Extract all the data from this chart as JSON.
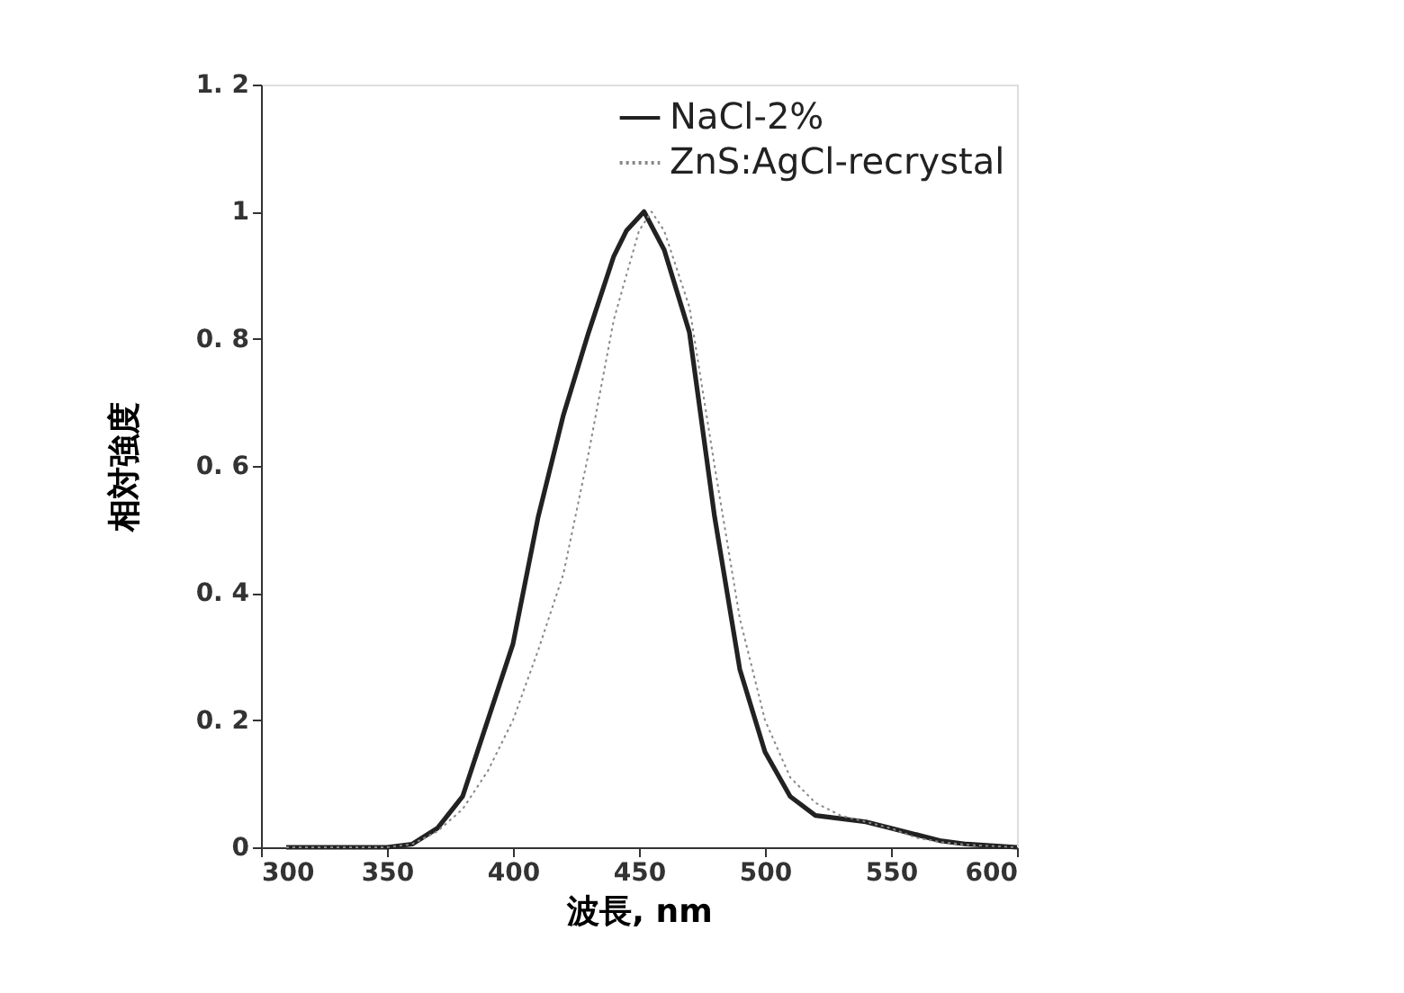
{
  "chart_data": {
    "type": "line",
    "xlabel": "波長, nm",
    "ylabel": "相対強度",
    "xlim": [
      300,
      600
    ],
    "xticks": [
      300,
      350,
      400,
      450,
      500,
      550,
      600
    ],
    "ylim": [
      0,
      1.2
    ],
    "yticks": [
      0,
      {
        "value": 0.2,
        "label": "0. 2"
      },
      {
        "value": 0.4,
        "label": "0. 4"
      },
      {
        "value": 0.6,
        "label": "0. 6"
      },
      {
        "value": 0.8,
        "label": "0. 8"
      },
      1,
      {
        "value": 1.2,
        "label": "1. 2"
      }
    ],
    "grid": false,
    "legend": "top right",
    "marker": "none",
    "series": [
      {
        "name": "NaCl-2%",
        "color": "#222222",
        "line_style": "solid",
        "x": [
          310,
          350,
          360,
          370,
          380,
          390,
          400,
          410,
          420,
          430,
          440,
          445,
          452,
          460,
          470,
          480,
          490,
          500,
          510,
          520,
          530,
          540,
          550,
          560,
          570,
          580,
          600
        ],
        "values": [
          0,
          0,
          0.005,
          0.03,
          0.08,
          0.2,
          0.32,
          0.52,
          0.68,
          0.81,
          0.93,
          0.97,
          1.0,
          0.94,
          0.81,
          0.52,
          0.28,
          0.15,
          0.08,
          0.05,
          0.045,
          0.04,
          0.03,
          0.02,
          0.01,
          0.005,
          0
        ]
      },
      {
        "name": "ZnS:AgCl-recrystal",
        "color": "#888888",
        "line_style": "dotted",
        "x": [
          310,
          350,
          360,
          370,
          380,
          390,
          400,
          410,
          420,
          430,
          440,
          450,
          455,
          460,
          470,
          480,
          490,
          500,
          510,
          520,
          530,
          540,
          550,
          560,
          570,
          580,
          600
        ],
        "values": [
          0,
          0,
          0.005,
          0.025,
          0.06,
          0.12,
          0.2,
          0.31,
          0.43,
          0.62,
          0.83,
          0.97,
          1.0,
          0.97,
          0.85,
          0.6,
          0.36,
          0.2,
          0.11,
          0.07,
          0.05,
          0.04,
          0.03,
          0.015,
          0.008,
          0.004,
          0
        ]
      }
    ]
  }
}
